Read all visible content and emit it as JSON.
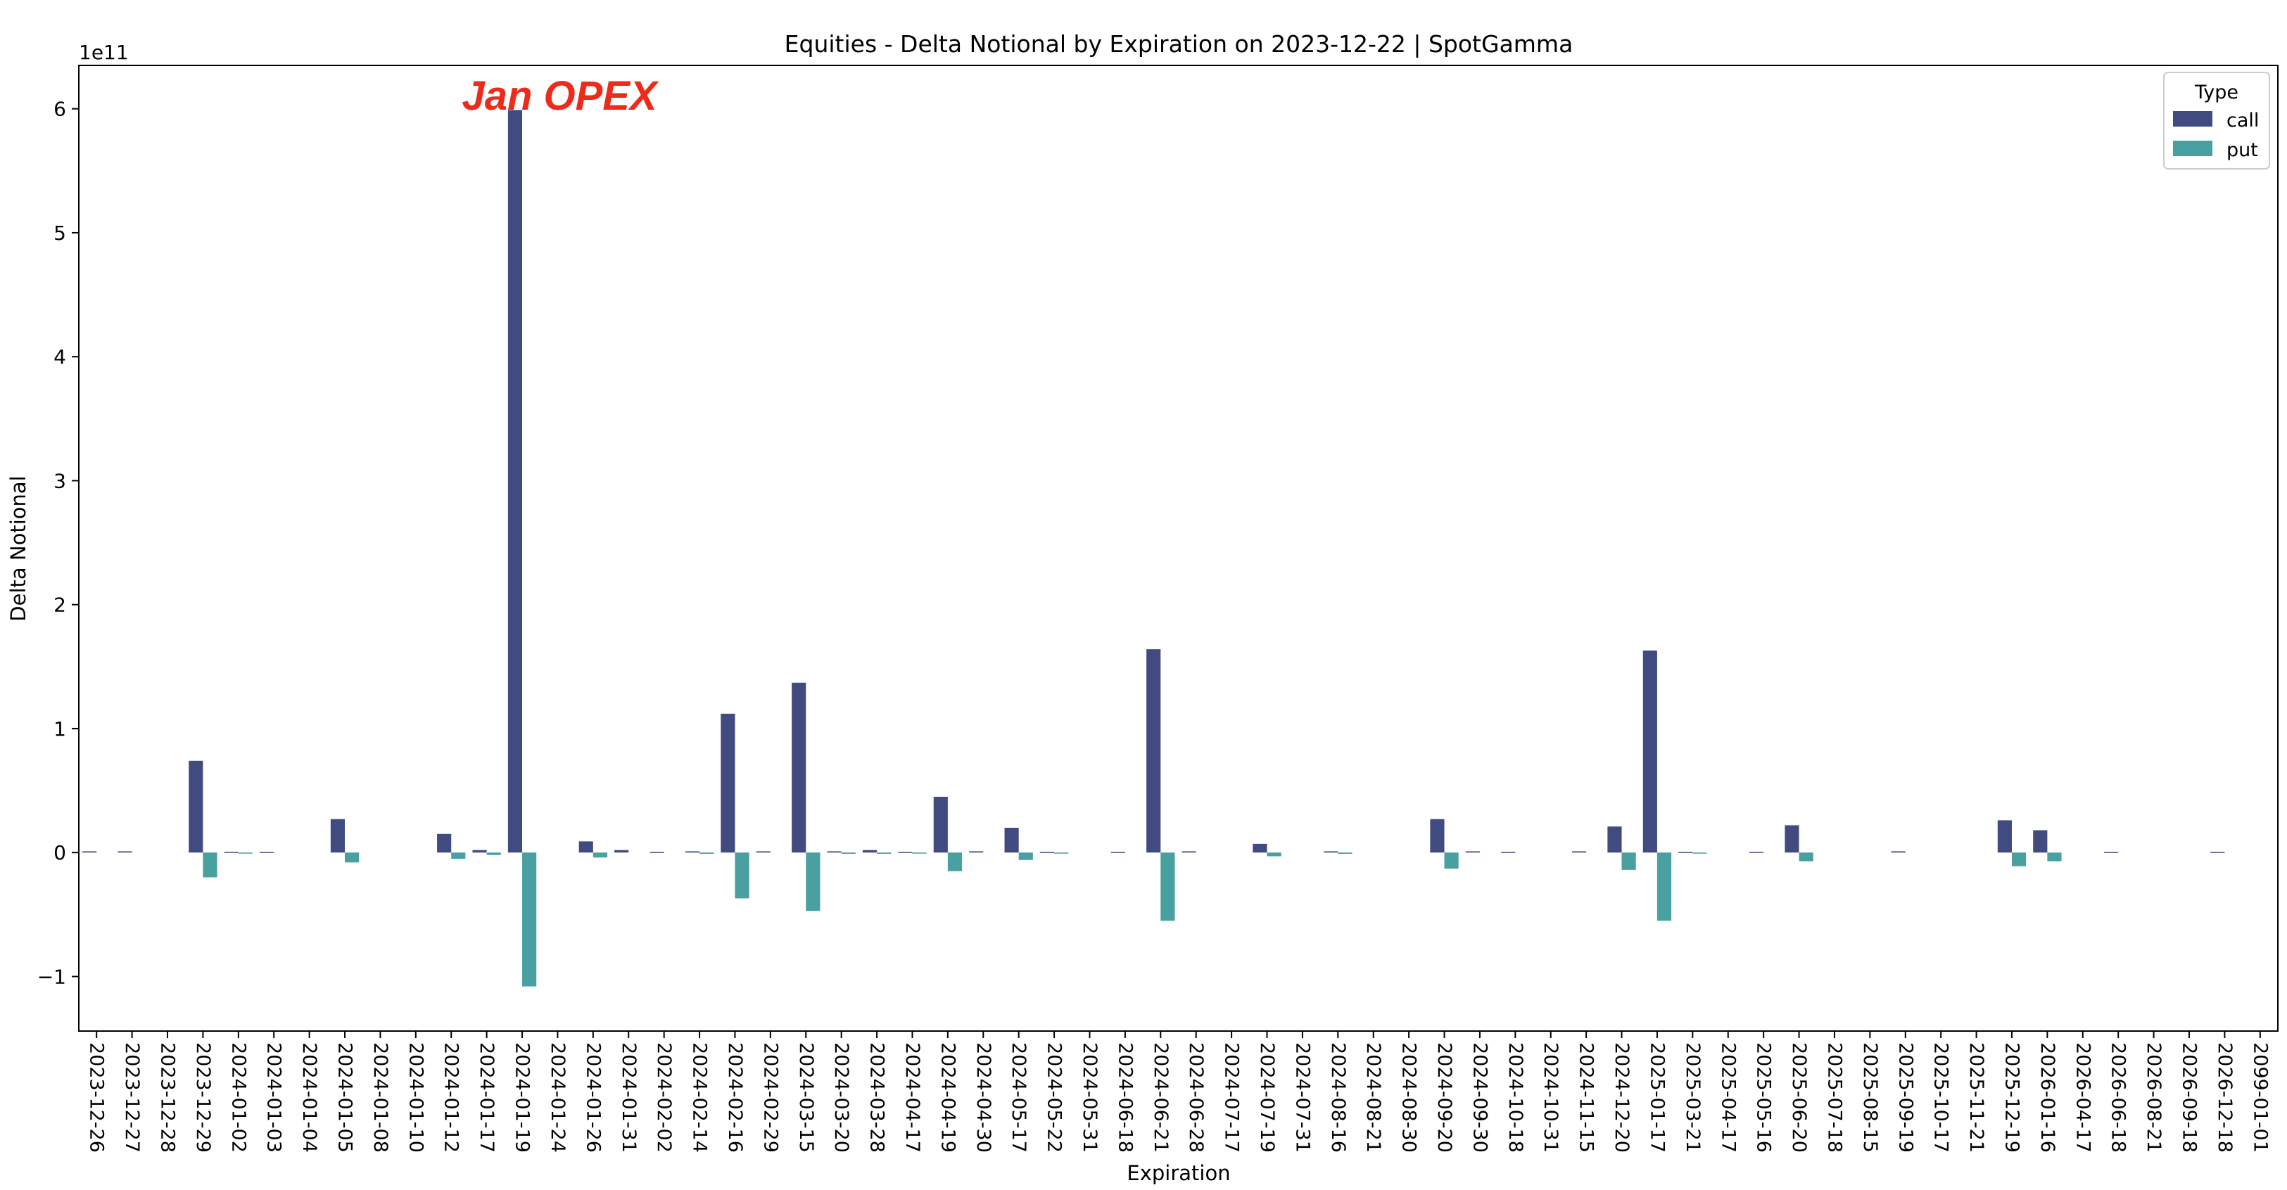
{
  "chart_data": {
    "type": "bar",
    "title": "Equities - Delta Notional by Expiration on 2023-12-22 | SpotGamma",
    "xlabel": "Expiration",
    "ylabel": "Delta Notional",
    "y_offset_text": "1e11",
    "y_scale_factor": 100000000000,
    "ylim": [
      -1.44,
      6.35
    ],
    "yticks": [
      -1,
      0,
      1,
      2,
      3,
      4,
      5,
      6
    ],
    "ytick_labels": [
      "−1",
      "0",
      "1",
      "2",
      "3",
      "4",
      "5",
      "6"
    ],
    "grid": false,
    "legend": {
      "title": "Type",
      "placement": "top-right"
    },
    "annotation": {
      "text": "Jan OPEX",
      "color": "#ee2a1b",
      "anchor_category": "2024-01-17",
      "y": 6.05
    },
    "categories": [
      "2023-12-26",
      "2023-12-27",
      "2023-12-28",
      "2023-12-29",
      "2024-01-02",
      "2024-01-03",
      "2024-01-04",
      "2024-01-05",
      "2024-01-08",
      "2024-01-10",
      "2024-01-12",
      "2024-01-17",
      "2024-01-19",
      "2024-01-24",
      "2024-01-26",
      "2024-01-31",
      "2024-02-02",
      "2024-02-14",
      "2024-02-16",
      "2024-02-29",
      "2024-03-15",
      "2024-03-20",
      "2024-03-28",
      "2024-04-17",
      "2024-04-19",
      "2024-04-30",
      "2024-05-17",
      "2024-05-22",
      "2024-05-31",
      "2024-06-18",
      "2024-06-21",
      "2024-06-28",
      "2024-07-17",
      "2024-07-19",
      "2024-07-31",
      "2024-08-16",
      "2024-08-21",
      "2024-08-30",
      "2024-09-20",
      "2024-09-30",
      "2024-10-18",
      "2024-10-31",
      "2024-11-15",
      "2024-12-20",
      "2025-01-17",
      "2025-03-21",
      "2025-04-17",
      "2025-05-16",
      "2025-06-20",
      "2025-07-18",
      "2025-08-15",
      "2025-09-19",
      "2025-10-17",
      "2025-11-21",
      "2025-12-19",
      "2026-01-16",
      "2026-04-17",
      "2026-06-18",
      "2026-08-21",
      "2026-09-18",
      "2026-12-18",
      "2099-01-01"
    ],
    "series": [
      {
        "name": "call",
        "color": "#414b80",
        "values": [
          0.01,
          0.01,
          0,
          0.74,
          0.005,
          0.005,
          0,
          0.27,
          0,
          0,
          0.15,
          0.02,
          5.99,
          0,
          0.09,
          0.02,
          0.005,
          0.01,
          1.12,
          0.01,
          1.37,
          0.01,
          0.02,
          0.005,
          0.45,
          0.01,
          0.2,
          0.005,
          0,
          0.005,
          1.64,
          0.01,
          0,
          0.07,
          0,
          0.01,
          0,
          0,
          0.27,
          0.01,
          0.005,
          0,
          0.01,
          0.21,
          1.63,
          0.005,
          0,
          0.005,
          0.22,
          0,
          0,
          0.01,
          0,
          0,
          0.26,
          0.18,
          0,
          0.005,
          0,
          0,
          0.005,
          0
        ]
      },
      {
        "name": "put",
        "color": "#48a0a0",
        "values": [
          0,
          0,
          0,
          -0.2,
          -0.005,
          0,
          0,
          -0.08,
          0,
          0,
          -0.05,
          -0.02,
          -1.08,
          0,
          -0.04,
          0,
          0,
          -0.01,
          -0.37,
          0,
          -0.47,
          -0.01,
          -0.01,
          -0.005,
          -0.15,
          0,
          -0.06,
          -0.005,
          0,
          0,
          -0.55,
          0,
          0,
          -0.03,
          0,
          -0.01,
          0,
          0,
          -0.13,
          0,
          0,
          0,
          0,
          -0.14,
          -0.55,
          -0.005,
          0,
          0,
          -0.07,
          0,
          0,
          0,
          0,
          0,
          -0.11,
          -0.07,
          0,
          0,
          0,
          0,
          0,
          0
        ]
      }
    ]
  }
}
